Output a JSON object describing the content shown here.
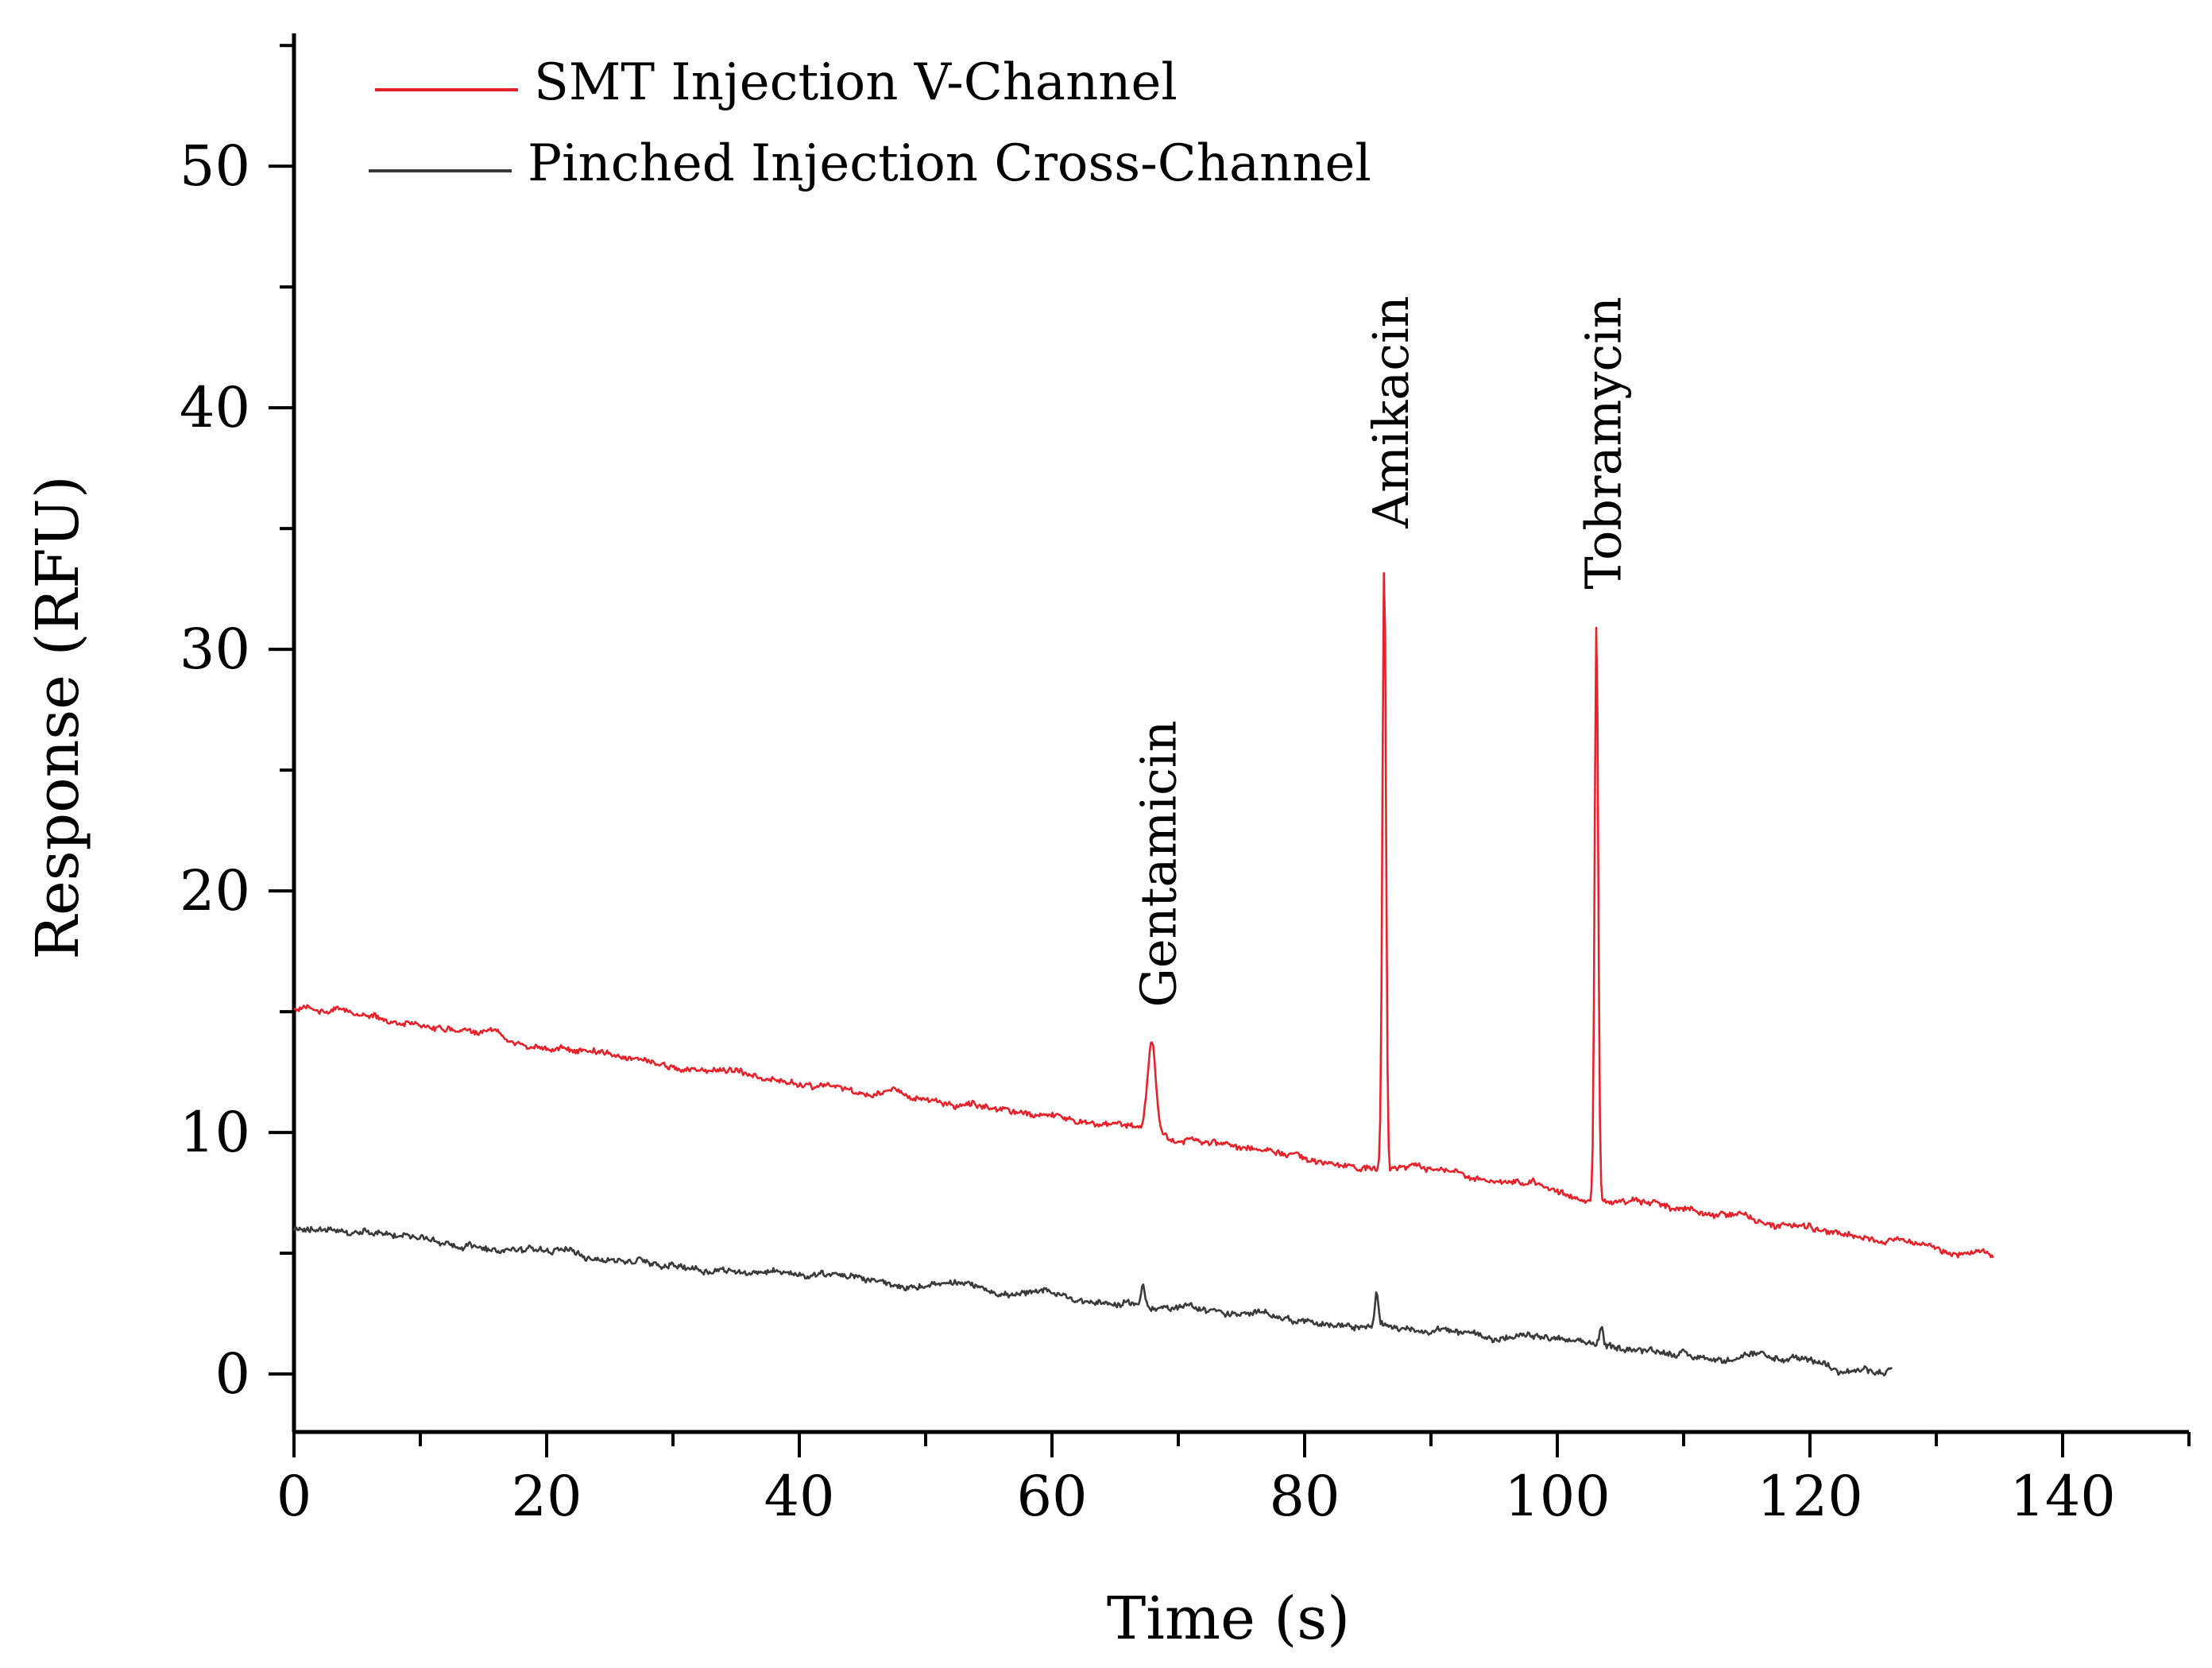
{
  "chart_data": {
    "type": "line",
    "title": "",
    "xlabel": "Time (s)",
    "ylabel": "Response (RFU)",
    "xlim": [
      0,
      150
    ],
    "ylim": [
      -2.4,
      55.5
    ],
    "x_ticks": [
      0,
      20,
      40,
      60,
      80,
      100,
      120,
      140
    ],
    "y_ticks": [
      0,
      10,
      20,
      30,
      40,
      50
    ],
    "x_minor_step": 10,
    "y_minor_step": 5,
    "grid": false,
    "legend_position": "top-left",
    "series": [
      {
        "name": "SMT Injection V-Channel",
        "color": "#e8222a",
        "x_range": [
          0,
          134.5
        ],
        "baseline_start": 15.1,
        "baseline_end": 5.0,
        "peaks": [
          {
            "label": "Gentamicin",
            "x": 67.9,
            "y": 13.8
          },
          {
            "label": "Amikacin",
            "x": 86.3,
            "y": 33.7
          },
          {
            "label": "Tobramycin",
            "x": 103.1,
            "y": 31.3
          }
        ]
      },
      {
        "name": "Pinched Injection Cross-Channel",
        "color": "#3a3a3a",
        "x_range": [
          0,
          126.5
        ],
        "baseline_start": 6.0,
        "baseline_end": 0.1,
        "peaks": [
          {
            "label": "",
            "x": 67.2,
            "y": 3.6
          },
          {
            "label": "",
            "x": 85.7,
            "y": 3.5
          },
          {
            "label": "",
            "x": 103.5,
            "y": 1.9
          }
        ]
      }
    ],
    "annotations": [
      "Gentamicin",
      "Amikacin",
      "Tobramycin"
    ]
  }
}
